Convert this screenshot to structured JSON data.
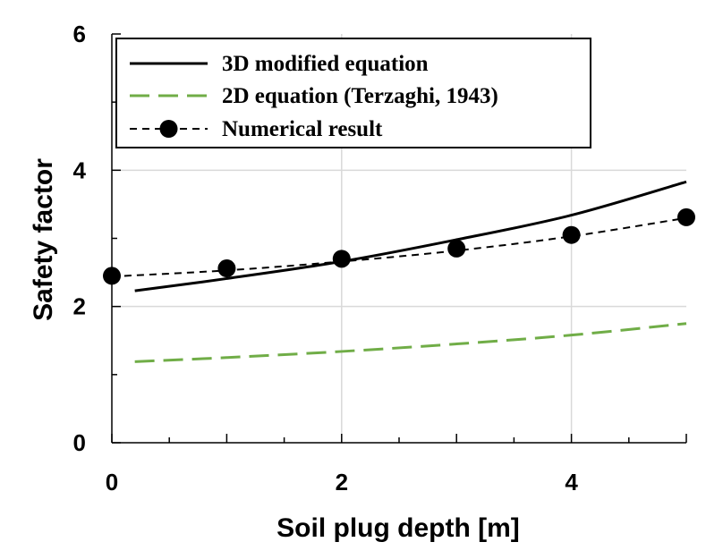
{
  "chart_data": {
    "type": "line",
    "xlabel": "Soil plug depth [m]",
    "ylabel": "Safety factor",
    "xlim": [
      0,
      5
    ],
    "ylim": [
      0,
      6
    ],
    "x_ticks": [
      "0",
      "2",
      "4"
    ],
    "y_ticks": [
      "0",
      "2",
      "4",
      "6"
    ],
    "grid": true,
    "legend_position": "top-left",
    "series": [
      {
        "name": "3D modified equation",
        "style": "solid",
        "color": "#000000",
        "x": [
          0.2,
          1,
          2,
          3,
          4,
          5
        ],
        "y": [
          2.23,
          2.41,
          2.66,
          2.98,
          3.34,
          3.83
        ]
      },
      {
        "name": "2D equation (Terzaghi, 1943)",
        "style": "long-dash",
        "color": "#70AD47",
        "x": [
          0.2,
          1,
          2,
          3,
          4,
          5
        ],
        "y": [
          1.19,
          1.25,
          1.34,
          1.45,
          1.58,
          1.75
        ]
      },
      {
        "name": "Numerical result",
        "style": "dashed-with-markers",
        "color": "#000000",
        "trend_x": [
          0,
          1,
          2,
          3,
          4,
          5
        ],
        "trend_y": [
          2.44,
          2.53,
          2.66,
          2.82,
          3.03,
          3.3
        ],
        "x": [
          0,
          1,
          2,
          3,
          4,
          5
        ],
        "y": [
          2.45,
          2.56,
          2.7,
          2.85,
          3.05,
          3.31
        ]
      }
    ]
  }
}
